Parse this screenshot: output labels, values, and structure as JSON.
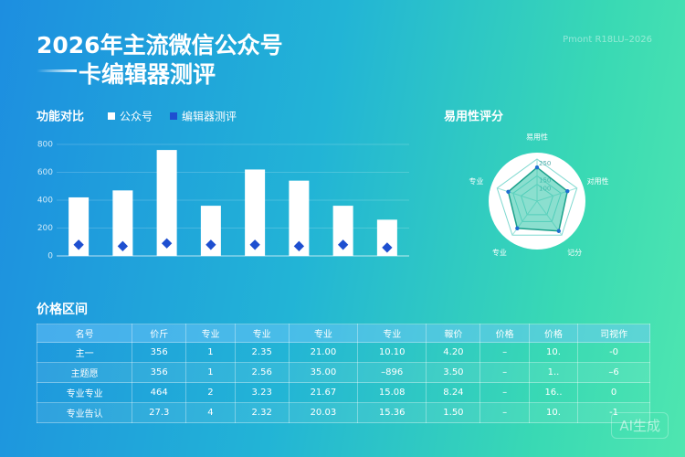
{
  "header": {
    "title": "2026年主流微信公众号",
    "subtitle": "卡编辑器测评",
    "tag": "Pmont R18LU–2026",
    "watermark": "AI生成"
  },
  "chart_data": [
    {
      "type": "bar",
      "title": "功能对比",
      "categories": [
        null,
        null,
        null,
        null,
        null,
        null,
        null,
        null
      ],
      "series": [
        {
          "name": "公众号",
          "color": "#ffffff",
          "values": [
            420,
            470,
            760,
            360,
            620,
            540,
            360,
            260
          ]
        },
        {
          "name": "编辑器测评",
          "color": "#1e4fd0",
          "values": [
            80,
            70,
            90,
            80,
            80,
            70,
            80,
            60
          ]
        }
      ],
      "ylim": [
        0,
        800
      ],
      "yticks": [
        0,
        200,
        400,
        600,
        800
      ],
      "grid": true
    },
    {
      "type": "radar",
      "title": "易用性评分",
      "categories": [
        "易用性",
        "对用性",
        "记分",
        "专业",
        "专业"
      ],
      "values": [
        200,
        190,
        220,
        200,
        180
      ],
      "color": "#2bc4a8",
      "rlim": [
        0,
        250
      ],
      "rticks": [
        100,
        150,
        250
      ]
    }
  ],
  "table": {
    "title": "价格区间",
    "header": [
      "名号",
      "价斤",
      "专业",
      "专业",
      "专业",
      "专业",
      "報价",
      "价格",
      "价格",
      "司视作"
    ],
    "rows": [
      [
        "主一",
        "356",
        "1",
        "2.35",
        "21.00",
        "10.10",
        "4.20",
        "–",
        "10.",
        "-0"
      ],
      [
        "主题愿",
        "356",
        "1",
        "2.56",
        "35.00",
        "–896",
        "3.50",
        "–",
        "1..",
        "–6"
      ],
      [
        "专业专业",
        "464",
        "2",
        "3.23",
        "21.67",
        "15.08",
        "8.24",
        "–",
        "16..",
        "0"
      ],
      [
        "专业告认",
        "27.3",
        "4",
        "2.32",
        "20.03",
        "15.36",
        "1.50",
        "–",
        "10.",
        "-1"
      ]
    ]
  }
}
